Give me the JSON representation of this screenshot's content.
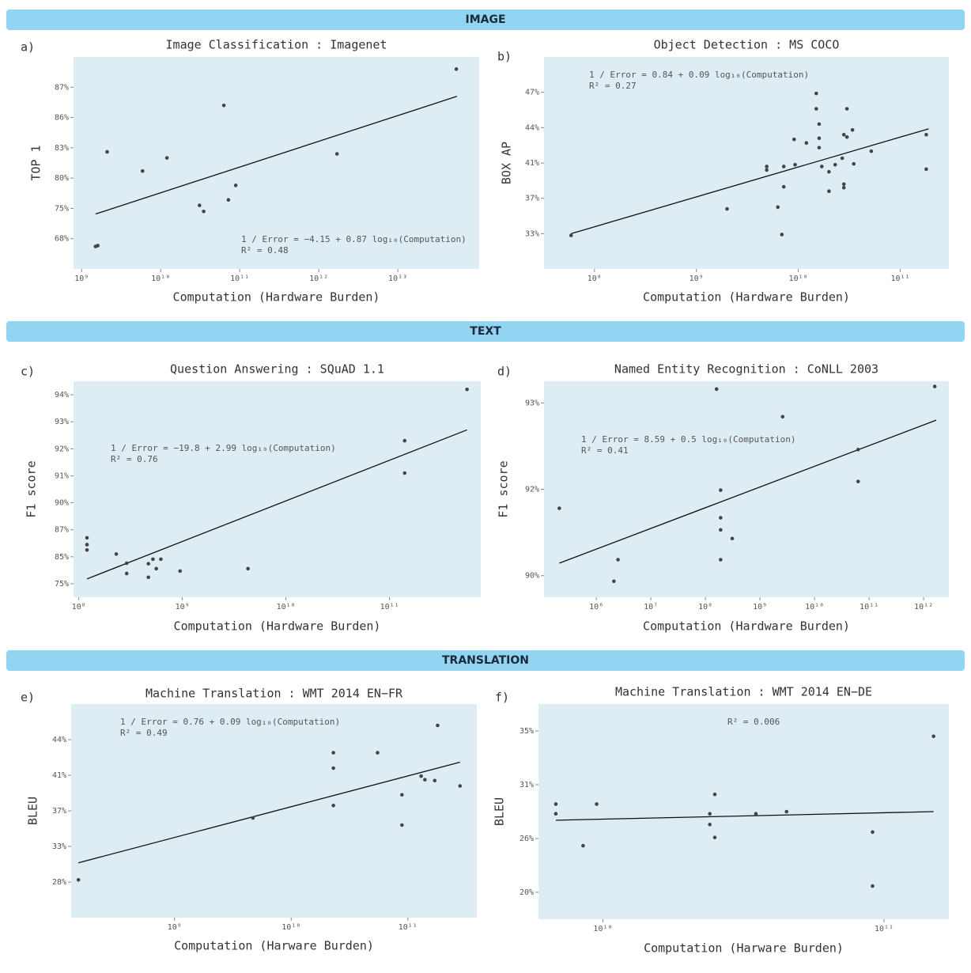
{
  "sections": [
    {
      "title": "IMAGE"
    },
    {
      "title": "TEXT"
    },
    {
      "title": "TRANSLATION"
    }
  ],
  "chart_data": [
    {
      "type": "scatter",
      "panel": "a)",
      "title": "Image Classification : Imagenet",
      "xlabel": "Computation (Hardware Burden)",
      "ylabel": "TOP 1",
      "xscale": "log",
      "background": "#deecf4",
      "color": "#444444",
      "x": [
        1500000000.0,
        1600000000.0,
        2100000000.0,
        5900000000.0,
        12000000000.0,
        63000000000.0,
        31000000000.0,
        35000000000.0,
        72000000000.0,
        89000000000.0,
        1700000000000.0,
        55000000000000.0
      ],
      "values": [
        66.2,
        66.4,
        82.6,
        80.7,
        82,
        86.4,
        75.5,
        74.3,
        76.4,
        78.8,
        82.4,
        87.6
      ],
      "fit": {
        "x": [
          1500000000.0,
          56000000000000.0
        ],
        "y": [
          73.7,
          86.7
        ],
        "color": "#111111"
      },
      "annotations": [
        "1 / Error = −4.15 + 0.87 log₁₀(Computation)",
        "R² = 0.48"
      ],
      "xlim": [
        790000000.0,
        107000000000000.0
      ],
      "ylim": [
        61,
        88
      ],
      "xticks": [
        {
          "value": 1000000000.0,
          "label": "10⁹"
        },
        {
          "value": 10000000000.0,
          "label": "10¹⁰"
        },
        {
          "value": 100000000000.0,
          "label": "10¹¹"
        },
        {
          "value": 1000000000000.0,
          "label": "10¹²"
        },
        {
          "value": 10000000000000.0,
          "label": "10¹³"
        }
      ],
      "yticks": [
        {
          "value": 68,
          "label": "68%"
        },
        {
          "value": 75,
          "label": "75%"
        },
        {
          "value": 80,
          "label": "80%"
        },
        {
          "value": 83,
          "label": "83%"
        },
        {
          "value": 86,
          "label": "86%"
        },
        {
          "value": 87,
          "label": "87%"
        }
      ]
    },
    {
      "type": "scatter",
      "panel": "b)",
      "title": "Object Detection : MS COCO",
      "xlabel": "Computation (Hardware Burden)",
      "ylabel": "BOX AP",
      "xscale": "log",
      "background": "#deecf4",
      "color": "#444444",
      "x": [
        59000000.0,
        2000000000.0,
        6900000000.0,
        6300000000.0,
        4900000000.0,
        4900000000.0,
        7200000000.0,
        7200000000.0,
        9100000000.0,
        9300000000.0,
        12000000000.0,
        15000000000.0,
        15000000000.0,
        16000000000.0,
        16000000000.0,
        16000000000.0,
        17000000000.0,
        20000000000.0,
        20000000000.0,
        23000000000.0,
        27000000000.0,
        28000000000.0,
        28000000000.0,
        28000000000.0,
        30000000000.0,
        30000000000.0,
        34000000000.0,
        35000000000.0,
        52000000000.0,
        180000000000.0,
        180000000000.0
      ],
      "values": [
        32.8,
        35.8,
        32.9,
        36,
        40.6,
        40.2,
        40.6,
        38.3,
        43,
        40.8,
        42.7,
        46.9,
        45.6,
        44.3,
        43.1,
        42.3,
        40.6,
        40,
        37.8,
        40.8,
        41.4,
        38.6,
        38.2,
        43.4,
        45.6,
        43.2,
        43.8,
        40.9,
        42,
        43.4,
        40.3
      ],
      "fit": {
        "x": [
          59000000.0,
          190000000000.0
        ],
        "y": [
          33,
          43.9
        ],
        "color": "#111111"
      },
      "annotations": [
        "1 / Error = 0.84 + 0.09 log₁₀(Computation)",
        "R² = 0.27"
      ],
      "xlim": [
        32000000.0,
        300000000000.0
      ],
      "ylim": [
        29,
        50
      ],
      "xticks": [
        {
          "value": 100000000.0,
          "label": "10⁸"
        },
        {
          "value": 1000000000.0,
          "label": "10⁹"
        },
        {
          "value": 10000000000.0,
          "label": "10¹⁰"
        },
        {
          "value": 100000000000.0,
          "label": "10¹¹"
        }
      ],
      "yticks": [
        {
          "value": 33,
          "label": "33%"
        },
        {
          "value": 37,
          "label": "37%"
        },
        {
          "value": 41,
          "label": "41%"
        },
        {
          "value": 44,
          "label": "44%"
        },
        {
          "value": 47,
          "label": "47%"
        }
      ]
    },
    {
      "type": "scatter",
      "panel": "c)",
      "title": "Question Answering : SQuAD 1.1",
      "xlabel": "Computation (Hardware Burden)",
      "ylabel": "F1 score",
      "xscale": "log",
      "background": "#deecf4",
      "color": "#444444",
      "x": [
        120000000.0,
        120000000.0,
        120000000.0,
        230000000.0,
        290000000.0,
        290000000.0,
        470000000.0,
        470000000.0,
        520000000.0,
        560000000.0,
        620000000.0,
        950000000.0,
        4300000000.0,
        140000000000.0,
        140000000000.0,
        560000000000.0
      ],
      "values": [
        86.4,
        85.9,
        85.5,
        85.2,
        82.6,
        78.8,
        82.4,
        77.4,
        84.1,
        80.6,
        84.1,
        79.7,
        80.6,
        92.3,
        91.1,
        94.2
      ],
      "fit": {
        "x": [
          120000000.0,
          560000000000.0
        ],
        "y": [
          76.8,
          92.7
        ],
        "color": "#111111"
      },
      "annotations": [
        "1 / Error = −19.8 + 2.99 log₁₀(Computation)",
        "R² = 0.76"
      ],
      "xlim": [
        89000000.0,
        760000000000.0
      ],
      "ylim": [
        70,
        94.5
      ],
      "xticks": [
        {
          "value": 100000000.0,
          "label": "10⁸"
        },
        {
          "value": 1000000000.0,
          "label": "10⁹"
        },
        {
          "value": 10000000000.0,
          "label": "10¹⁰"
        },
        {
          "value": 100000000000.0,
          "label": "10¹¹"
        }
      ],
      "yticks": [
        {
          "value": 75,
          "label": "75%"
        },
        {
          "value": 85,
          "label": "85%"
        },
        {
          "value": 87,
          "label": "87%"
        },
        {
          "value": 90,
          "label": "90%"
        },
        {
          "value": 91,
          "label": "91%"
        },
        {
          "value": 92,
          "label": "92%"
        },
        {
          "value": 93,
          "label": "93%"
        },
        {
          "value": 94,
          "label": "94%"
        }
      ]
    },
    {
      "type": "scatter",
      "panel": "d)",
      "title": "Named Entity Recognition : CoNLL 2003",
      "xlabel": "Computation (Hardware Burden)",
      "ylabel": "F1 score",
      "xscale": "log",
      "background": "#deecf4",
      "color": "#444444",
      "x": [
        210000.0,
        2500000.0,
        2100000.0,
        160000000.0,
        190000000.0,
        190000000.0,
        190000000.0,
        310000000.0,
        190000000.0,
        2600000000.0,
        63000000000.0,
        63000000000.0,
        1600000000000.0
      ],
      "values": [
        91.56,
        90.37,
        89.87,
        93.16,
        91.98,
        91.34,
        91.06,
        90.86,
        90.37,
        92.84,
        92.46,
        92.09,
        93.19
      ],
      "fit": {
        "x": [
          210000.0,
          1700000000000.0
        ],
        "y": [
          90.29,
          92.8
        ],
        "color": "#111111"
      },
      "annotations": [
        "1 / Error = 8.59 + 0.5 log₁₀(Computation)",
        "R² = 0.41"
      ],
      "xlim": [
        110000.0,
        2900000000000.0
      ],
      "ylim": [
        89.5,
        93.25
      ],
      "xticks": [
        {
          "value": 1000000.0,
          "label": "10⁶"
        },
        {
          "value": 10000000.0,
          "label": "10⁷"
        },
        {
          "value": 100000000.0,
          "label": "10⁸"
        },
        {
          "value": 1000000000.0,
          "label": "10⁹"
        },
        {
          "value": 10000000000.0,
          "label": "10¹⁰"
        },
        {
          "value": 100000000000.0,
          "label": "10¹¹"
        },
        {
          "value": 1000000000000.0,
          "label": "10¹²"
        }
      ],
      "yticks": [
        {
          "value": 90,
          "label": "90%"
        },
        {
          "value": 92,
          "label": "92%"
        },
        {
          "value": 93,
          "label": "93%"
        }
      ]
    },
    {
      "type": "scatter",
      "panel": "e)",
      "title": "Machine Translation : WMT 2014 EN−FR",
      "xlabel": "Computation (Harware Burden)",
      "ylabel": "BLEU",
      "xscale": "log",
      "background": "#deecf4",
      "color": "#444444",
      "x": [
        150000000.0,
        4700000000.0,
        23000000000.0,
        23000000000.0,
        23000000000.0,
        55000000000.0,
        89000000000.0,
        89000000000.0,
        130000000000.0,
        140000000000.0,
        170000000000.0,
        180000000000.0,
        280000000000.0
      ],
      "values": [
        28.3,
        36.2,
        37.6,
        41.6,
        42.9,
        42.9,
        35.4,
        38.8,
        40.9,
        40.5,
        40.4,
        45.2,
        39.8
      ],
      "fit": {
        "x": [
          150000000.0,
          280000000000.0
        ],
        "y": [
          30.7,
          42.1
        ],
        "color": "#111111"
      },
      "annotations": [
        "1 / Error = 0.76 + 0.09 log₁₀(Computation)",
        "R² = 0.49"
      ],
      "xlim": [
        130000000.0,
        390000000000.0
      ],
      "ylim": [
        23,
        47
      ],
      "xticks": [
        {
          "value": 1000000000.0,
          "label": "10⁹"
        },
        {
          "value": 10000000000.0,
          "label": "10¹⁰"
        },
        {
          "value": 100000000000.0,
          "label": "10¹¹"
        }
      ],
      "yticks": [
        {
          "value": 28,
          "label": "28%"
        },
        {
          "value": 33,
          "label": "33%"
        },
        {
          "value": 37,
          "label": "37%"
        },
        {
          "value": 41,
          "label": "41%"
        },
        {
          "value": 44,
          "label": "44%"
        }
      ]
    },
    {
      "type": "scatter",
      "panel": "f)",
      "title": "Machine Translation : WMT 2014 EN−DE",
      "xlabel": "Computation (Harware Burden)",
      "ylabel": "BLEU",
      "xscale": "log",
      "background": "#deecf4",
      "color": "#444444",
      "x": [
        6800000000.0,
        6800000000.0,
        8500000000.0,
        9500000000.0,
        24000000000.0,
        24000000000.0,
        25000000000.0,
        25000000000.0,
        35000000000.0,
        45000000000.0,
        91000000000.0,
        91000000000.0,
        150000000000.0
      ],
      "values": [
        29.2,
        28.3,
        25.2,
        29.2,
        28.3,
        27.3,
        30.1,
        26.1,
        28.3,
        28.5,
        26.6,
        20.7,
        34.6
      ],
      "fit": {
        "x": [
          6800000000.0,
          150000000000.0
        ],
        "y": [
          27.7,
          28.5
        ],
        "color": "#111111"
      },
      "annotations": [
        "R² = 0.006"
      ],
      "xlim": [
        5900000000.0,
        170000000000.0
      ],
      "ylim": [
        17,
        37
      ],
      "xticks": [
        {
          "value": 10000000000.0,
          "label": "10¹⁰"
        },
        {
          "value": 100000000000.0,
          "label": "10¹¹"
        }
      ],
      "yticks": [
        {
          "value": 20,
          "label": "20%"
        },
        {
          "value": 26,
          "label": "26%"
        },
        {
          "value": 31,
          "label": "31%"
        },
        {
          "value": 35,
          "label": "35%"
        }
      ]
    }
  ]
}
